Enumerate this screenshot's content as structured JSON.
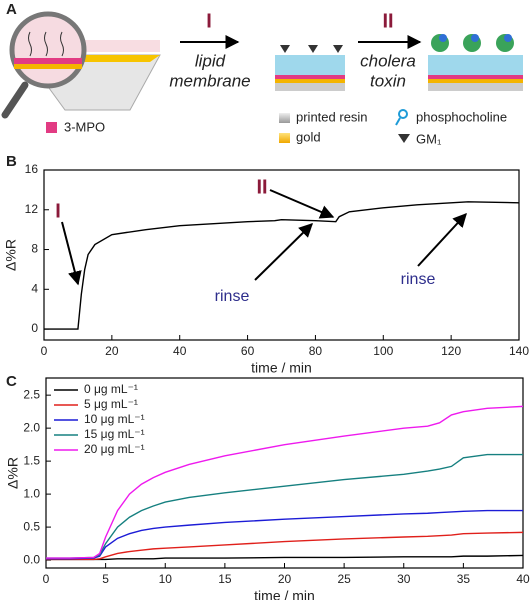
{
  "panel_labels": [
    "A",
    "B",
    "C"
  ],
  "schematic": {
    "step_1": "I",
    "step_1_label": [
      "lipid",
      "membrane"
    ],
    "step_2": "II",
    "step_2_label": [
      "cholera",
      "toxin"
    ],
    "legend": [
      "3-MPO",
      "printed resin",
      "gold",
      "phosphocholine",
      "GM₁"
    ]
  },
  "chart_data": [
    {
      "type": "line",
      "xlabel": "time / min",
      "ylabel": "Δ%R",
      "xlim": [
        0,
        140
      ],
      "ylim": [
        -1.1,
        16
      ],
      "xticks": [
        0,
        20,
        40,
        60,
        80,
        100,
        120,
        140
      ],
      "yticks": [
        0,
        4,
        8,
        12,
        16
      ],
      "x": [
        0,
        5,
        10,
        11,
        12,
        13,
        15,
        20,
        30,
        40,
        50,
        60,
        68,
        70,
        80,
        86,
        87,
        90,
        100,
        110,
        120,
        125,
        140
      ],
      "values": [
        0,
        0,
        0,
        3.5,
        6,
        7.5,
        8.5,
        9.5,
        10,
        10.4,
        10.6,
        10.8,
        10.9,
        11,
        10.9,
        10.8,
        11.3,
        11.8,
        12.2,
        12.5,
        12.7,
        12.8,
        12.7
      ],
      "color": "#000000",
      "annotations": [
        {
          "text": "I",
          "color": "#8b1a3a"
        },
        {
          "text": "II",
          "color": "#8b1a3a"
        },
        {
          "text": "rinse",
          "color": "#2e2e8c"
        },
        {
          "text": "rinse",
          "color": "#2e2e8c"
        }
      ]
    },
    {
      "type": "line",
      "xlabel": "time / min",
      "ylabel": "Δ%R",
      "xlim": [
        0,
        40
      ],
      "ylim": [
        -0.12,
        2.76
      ],
      "xticks": [
        0,
        5,
        10,
        15,
        20,
        25,
        30,
        35,
        40
      ],
      "yticks": [
        {
          "value": 0,
          "label": "0.0"
        },
        0.5,
        {
          "value": 1,
          "label": "1.0"
        },
        1.5,
        {
          "value": 2,
          "label": "2.0"
        },
        2.5
      ],
      "x": [
        0,
        2,
        4,
        4.5,
        5,
        6,
        7,
        8,
        9,
        10,
        12,
        15,
        20,
        25,
        30,
        32,
        33,
        34,
        35,
        37,
        40
      ],
      "series": [
        {
          "name": "0 μg mL⁻¹",
          "color": "#000000",
          "values": [
            0.01,
            0.01,
            0.01,
            0.01,
            0.01,
            0.02,
            0.02,
            0.02,
            0.02,
            0.03,
            0.03,
            0.03,
            0.04,
            0.04,
            0.05,
            0.05,
            0.05,
            0.05,
            0.06,
            0.06,
            0.07
          ]
        },
        {
          "name": "5 μg mL⁻¹",
          "color": "#e0201b",
          "values": [
            0.01,
            0.01,
            0.01,
            0.02,
            0.05,
            0.1,
            0.13,
            0.15,
            0.17,
            0.18,
            0.2,
            0.23,
            0.28,
            0.32,
            0.35,
            0.36,
            0.37,
            0.38,
            0.4,
            0.41,
            0.42
          ]
        },
        {
          "name": "10 μg mL⁻¹",
          "color": "#1c1cd6",
          "values": [
            0.02,
            0.02,
            0.03,
            0.06,
            0.2,
            0.33,
            0.4,
            0.45,
            0.48,
            0.5,
            0.53,
            0.57,
            0.62,
            0.66,
            0.7,
            0.71,
            0.72,
            0.73,
            0.74,
            0.75,
            0.75
          ]
        },
        {
          "name": "15 μg mL⁻¹",
          "color": "#168080",
          "values": [
            0.03,
            0.03,
            0.04,
            0.08,
            0.25,
            0.5,
            0.65,
            0.75,
            0.82,
            0.88,
            0.95,
            1.02,
            1.12,
            1.22,
            1.3,
            1.35,
            1.38,
            1.42,
            1.55,
            1.6,
            1.6
          ]
        },
        {
          "name": "20 μg mL⁻¹",
          "color": "#ee1aee",
          "values": [
            0.03,
            0.03,
            0.04,
            0.1,
            0.35,
            0.75,
            1.0,
            1.15,
            1.25,
            1.33,
            1.45,
            1.58,
            1.75,
            1.88,
            2.0,
            2.03,
            2.08,
            2.2,
            2.25,
            2.3,
            2.33
          ]
        }
      ],
      "legend": "upper-left"
    }
  ]
}
